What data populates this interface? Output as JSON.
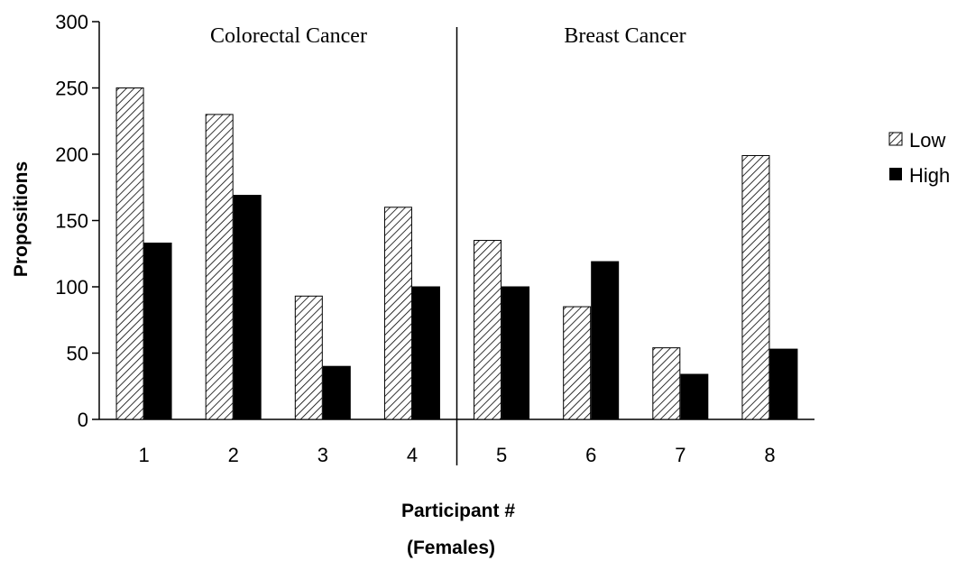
{
  "chart_data": {
    "type": "bar",
    "categories": [
      "1",
      "2",
      "3",
      "4",
      "5",
      "6",
      "7",
      "8"
    ],
    "series": [
      {
        "name": "Low",
        "values": [
          250,
          230,
          93,
          160,
          135,
          85,
          54,
          199
        ],
        "pattern": "diagonal-hatch"
      },
      {
        "name": "High",
        "values": [
          133,
          169,
          40,
          100,
          100,
          119,
          34,
          53
        ],
        "color": "#000000"
      }
    ],
    "ylabel": "Propositions",
    "xlabel": [
      "Participant #",
      "(Females)"
    ],
    "ylim": [
      0,
      300
    ],
    "yticks": [
      0,
      50,
      100,
      150,
      200,
      250,
      300
    ],
    "groups": [
      {
        "label": "Colorectal Cancer",
        "categories": [
          "1",
          "2",
          "3",
          "4"
        ]
      },
      {
        "label": "Breast Cancer",
        "categories": [
          "5",
          "6",
          "7",
          "8"
        ]
      }
    ],
    "legend_position": "right",
    "grid": false
  }
}
